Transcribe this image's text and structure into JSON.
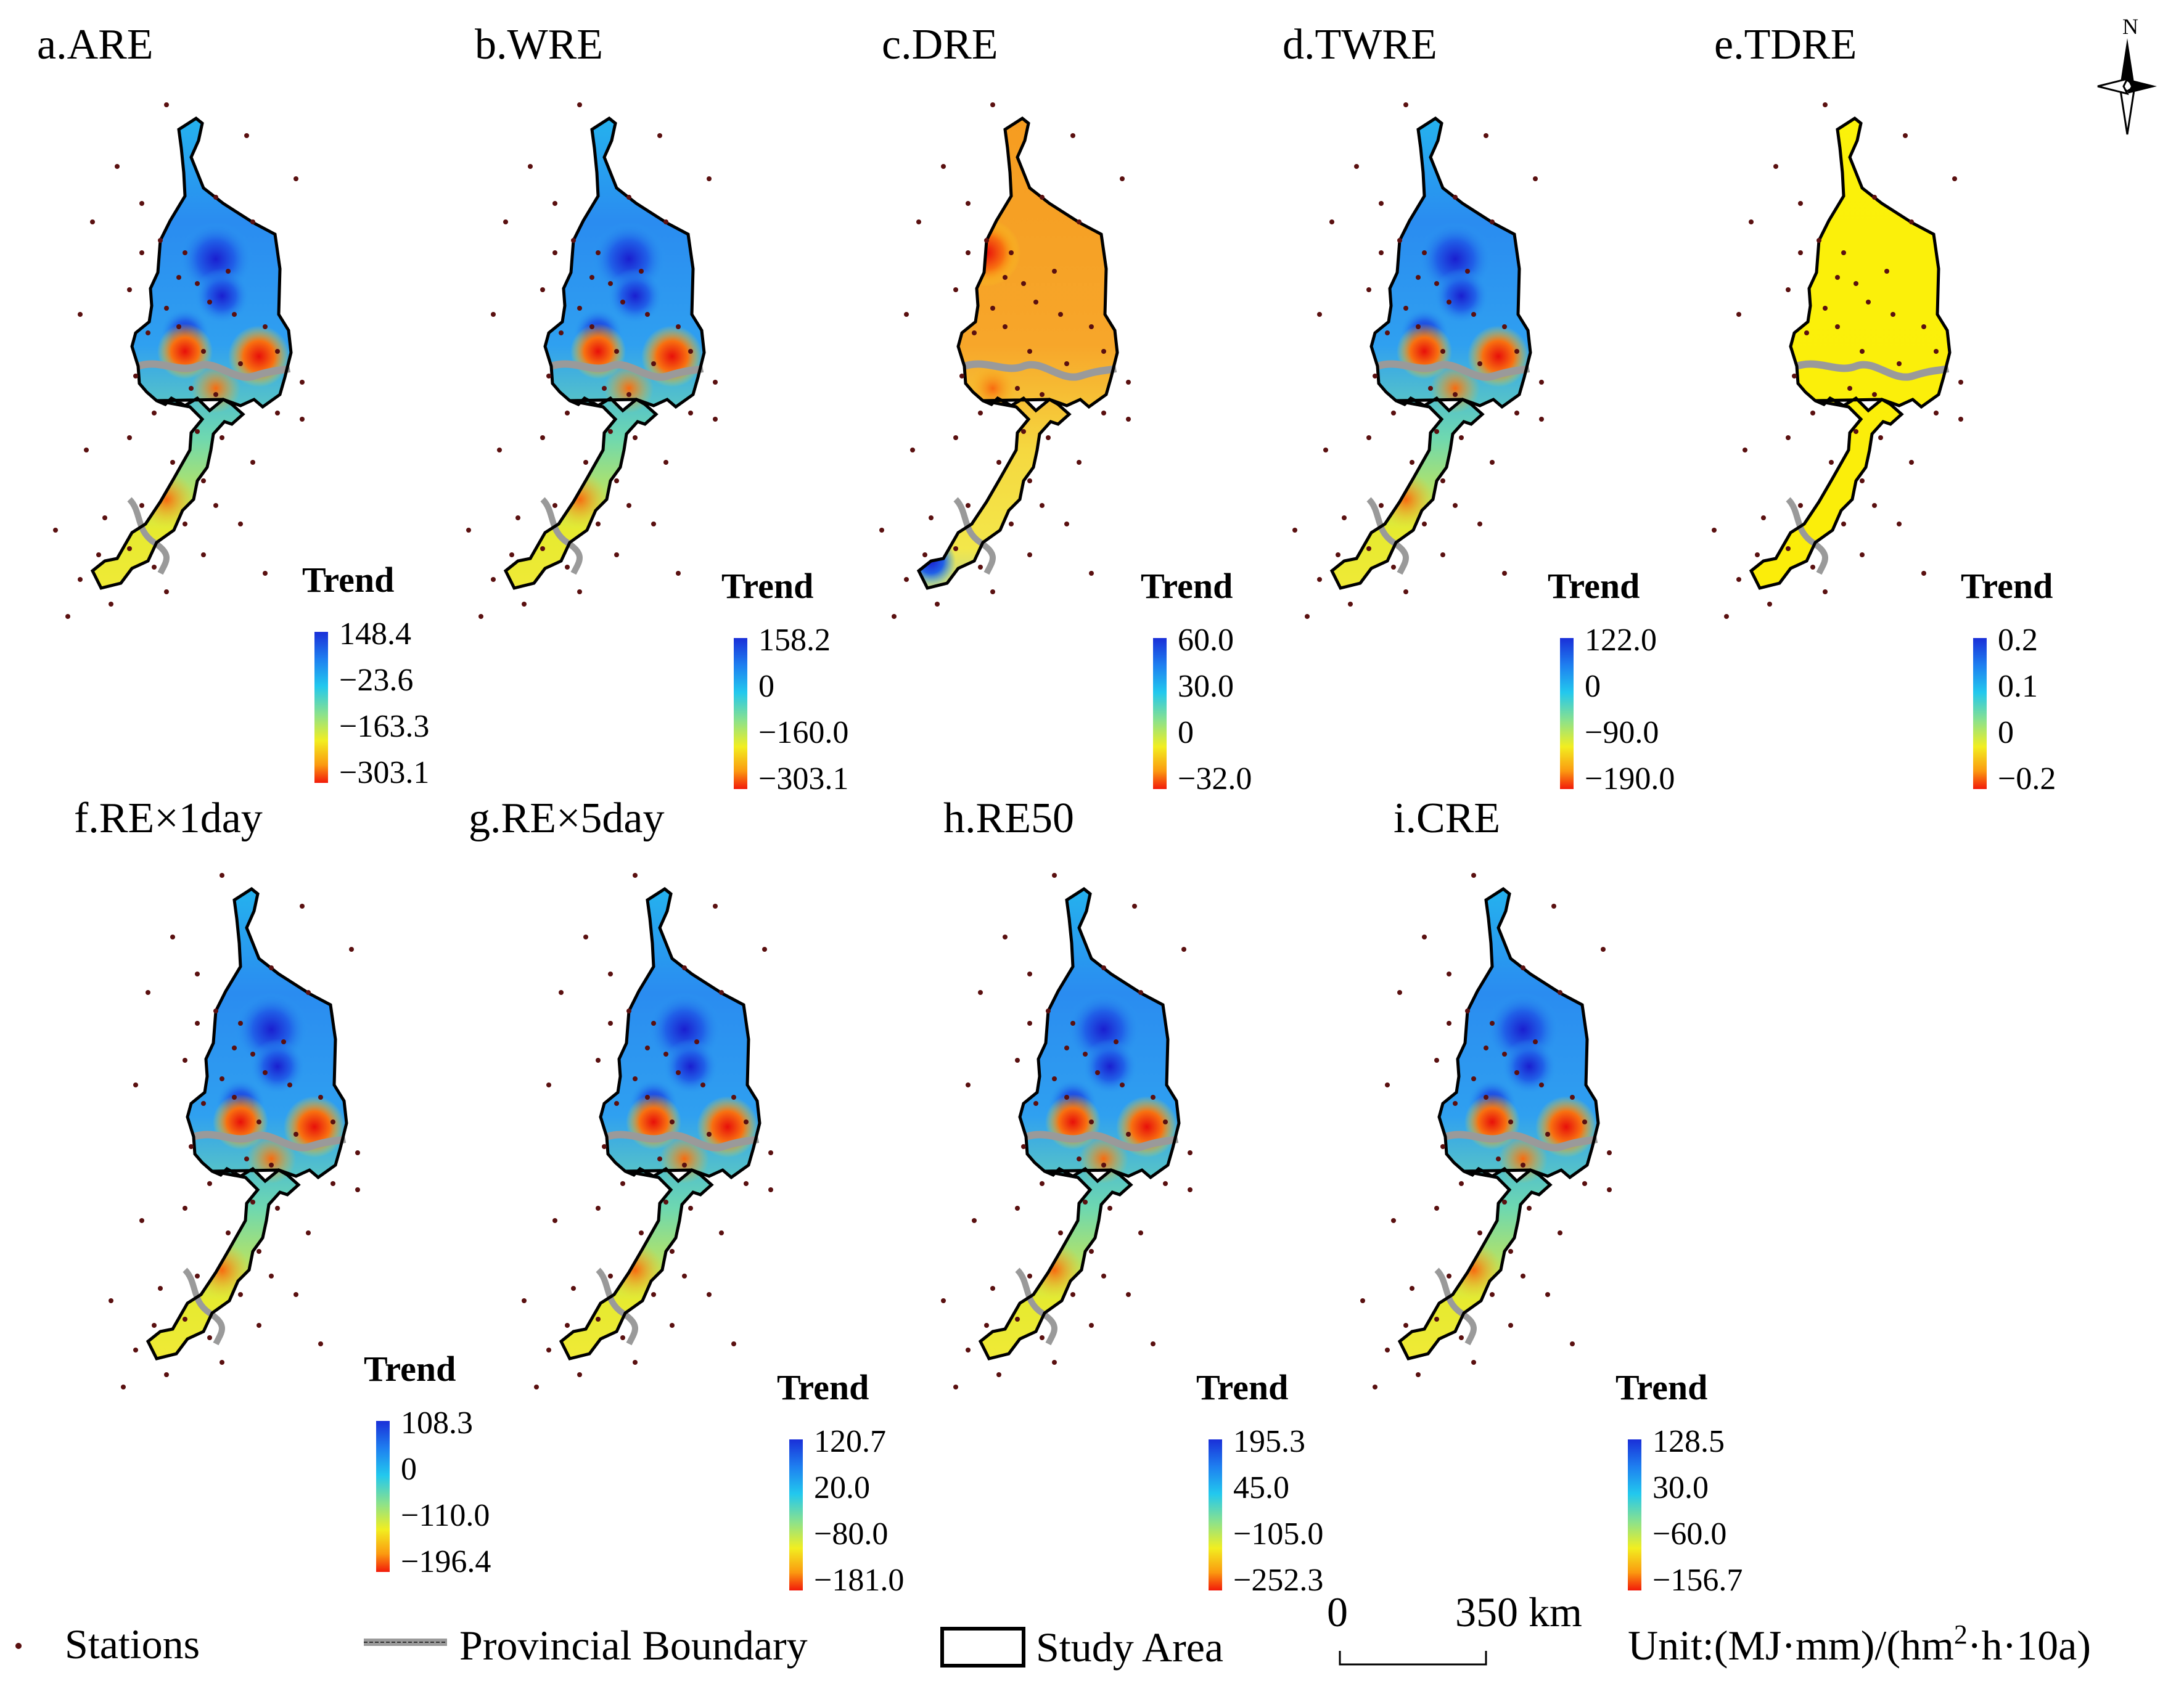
{
  "figure": {
    "legend_heading": "Trend",
    "unit": "Unit:(MJ·mm)/(hm²·h·10a)",
    "unit_parts": {
      "prefix": "Unit:(MJ·mm)/(hm",
      "sup": "2",
      "suffix": "·h·10a)"
    },
    "north_label": "N",
    "scale_bar": {
      "start": "0",
      "end": "350 km"
    },
    "bottom_legend": {
      "stations": "Stations",
      "provincial_boundary": "Provincial Boundary",
      "study_area": "Study Area"
    },
    "colors": {
      "boundary": "#000000",
      "provincial_boundary": "#9a9a9a",
      "station": "#5a1010",
      "ramp": [
        "#1a2fd8",
        "#1e7ff0",
        "#22c8ee",
        "#7be0a0",
        "#f2ee20",
        "#fb9a10",
        "#f21a0a"
      ]
    }
  },
  "panels": [
    {
      "id": "a",
      "title": "a.ARE",
      "legend": [
        "148.4",
        "−23.6",
        "−163.3",
        "−303.1"
      ],
      "theme": "blue"
    },
    {
      "id": "b",
      "title": "b.WRE",
      "legend": [
        "158.2",
        "0",
        "−160.0",
        "−303.1"
      ],
      "theme": "blue"
    },
    {
      "id": "c",
      "title": "c.DRE",
      "legend": [
        "60.0",
        "30.0",
        "0",
        "−32.0"
      ],
      "theme": "orange"
    },
    {
      "id": "d",
      "title": "d.TWRE",
      "legend": [
        "122.0",
        "0",
        "−90.0",
        "−190.0"
      ],
      "theme": "blue"
    },
    {
      "id": "e",
      "title": "e.TDRE",
      "legend": [
        "0.2",
        "0.1",
        "0",
        "−0.2"
      ],
      "theme": "yellow"
    },
    {
      "id": "f",
      "title": "f.RE×1day",
      "legend": [
        "108.3",
        "0",
        "−110.0",
        "−196.4"
      ],
      "theme": "blue"
    },
    {
      "id": "g",
      "title": "g.RE×5day",
      "legend": [
        "120.7",
        "20.0",
        "−80.0",
        "−181.0"
      ],
      "theme": "blue"
    },
    {
      "id": "h",
      "title": "h.RE50",
      "legend": [
        "195.3",
        "45.0",
        "−105.0",
        "−252.3"
      ],
      "theme": "blue"
    },
    {
      "id": "i",
      "title": "i.CRE",
      "legend": [
        "128.5",
        "30.0",
        "−60.0",
        "−156.7"
      ],
      "theme": "blue"
    }
  ]
}
